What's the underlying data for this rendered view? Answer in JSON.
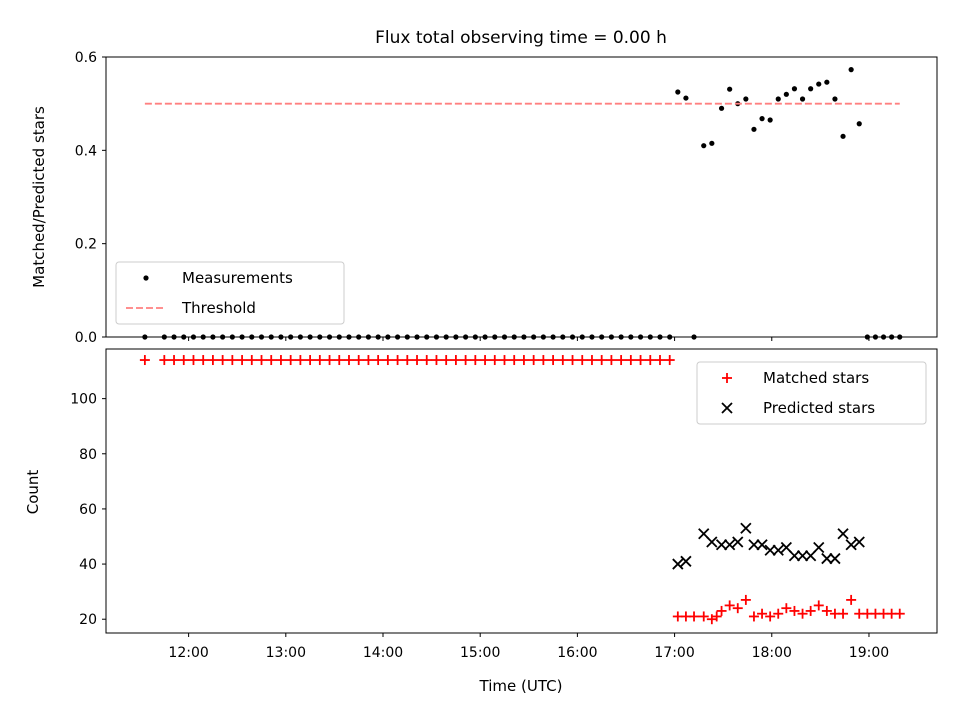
{
  "title": "Flux total observing time = 0.00 h",
  "chart_data": [
    {
      "type": "scatter",
      "ylabel": "Matched/Predicted stars",
      "ylim": [
        0,
        0.6
      ],
      "yticks": [
        "0.0",
        "0.2",
        "0.4",
        "0.6"
      ],
      "xlim": [
        "11:09",
        "19:42"
      ],
      "grid": false,
      "legend_position": "lower-left",
      "series": [
        {
          "name": "Measurements",
          "color": "#000000",
          "marker": "dot",
          "points": [
            [
              "11:33",
              0
            ],
            [
              "11:45",
              0
            ],
            [
              "11:51",
              0
            ],
            [
              "11:57",
              0
            ],
            [
              "12:03",
              0
            ],
            [
              "12:09",
              0
            ],
            [
              "12:15",
              0
            ],
            [
              "12:21",
              0
            ],
            [
              "12:27",
              0
            ],
            [
              "12:33",
              0
            ],
            [
              "12:39",
              0
            ],
            [
              "12:45",
              0
            ],
            [
              "12:51",
              0
            ],
            [
              "12:57",
              0
            ],
            [
              "13:03",
              0
            ],
            [
              "13:09",
              0
            ],
            [
              "13:15",
              0
            ],
            [
              "13:21",
              0
            ],
            [
              "13:27",
              0
            ],
            [
              "13:33",
              0
            ],
            [
              "13:39",
              0
            ],
            [
              "13:45",
              0
            ],
            [
              "13:51",
              0
            ],
            [
              "13:57",
              0
            ],
            [
              "14:03",
              0
            ],
            [
              "14:09",
              0
            ],
            [
              "14:15",
              0
            ],
            [
              "14:21",
              0
            ],
            [
              "14:27",
              0
            ],
            [
              "14:33",
              0
            ],
            [
              "14:39",
              0
            ],
            [
              "14:45",
              0
            ],
            [
              "14:51",
              0
            ],
            [
              "14:57",
              0
            ],
            [
              "15:03",
              0
            ],
            [
              "15:09",
              0
            ],
            [
              "15:15",
              0
            ],
            [
              "15:21",
              0
            ],
            [
              "15:27",
              0
            ],
            [
              "15:33",
              0
            ],
            [
              "15:39",
              0
            ],
            [
              "15:45",
              0
            ],
            [
              "15:51",
              0
            ],
            [
              "15:57",
              0
            ],
            [
              "16:03",
              0
            ],
            [
              "16:09",
              0
            ],
            [
              "16:15",
              0
            ],
            [
              "16:21",
              0
            ],
            [
              "16:27",
              0
            ],
            [
              "16:33",
              0
            ],
            [
              "16:39",
              0
            ],
            [
              "16:45",
              0
            ],
            [
              "16:51",
              0
            ],
            [
              "16:57",
              0
            ],
            [
              "17:02",
              0.525
            ],
            [
              "17:07",
              0.512
            ],
            [
              "17:12",
              0
            ],
            [
              "17:18",
              0.41
            ],
            [
              "17:23",
              0.415
            ],
            [
              "17:29",
              0.49
            ],
            [
              "17:34",
              0.531
            ],
            [
              "17:39",
              0.5
            ],
            [
              "17:44",
              0.51
            ],
            [
              "17:49",
              0.445
            ],
            [
              "17:54",
              0.468
            ],
            [
              "17:59",
              0.465
            ],
            [
              "18:04",
              0.51
            ],
            [
              "18:09",
              0.52
            ],
            [
              "18:14",
              0.532
            ],
            [
              "18:19",
              0.51
            ],
            [
              "18:24",
              0.532
            ],
            [
              "18:29",
              0.542
            ],
            [
              "18:34",
              0.546
            ],
            [
              "18:39",
              0.51
            ],
            [
              "18:44",
              0.43
            ],
            [
              "18:49",
              0.573
            ],
            [
              "18:54",
              0.457
            ],
            [
              "18:59",
              0
            ],
            [
              "19:04",
              0
            ],
            [
              "19:09",
              0
            ],
            [
              "19:14",
              0
            ],
            [
              "19:19",
              0
            ]
          ]
        },
        {
          "name": "Threshold",
          "color": "#ff8080",
          "style": "dashed",
          "points": [
            [
              "11:33",
              0.5
            ],
            [
              "19:19",
              0.5
            ]
          ]
        }
      ]
    },
    {
      "type": "scatter",
      "xlabel": "Time (UTC)",
      "ylabel": "Count",
      "ylim": [
        15,
        118
      ],
      "yticks": [
        "20",
        "40",
        "60",
        "80",
        "100"
      ],
      "xticks": [
        "12:00",
        "13:00",
        "14:00",
        "15:00",
        "16:00",
        "17:00",
        "18:00",
        "19:00"
      ],
      "xlim": [
        "11:09",
        "19:42"
      ],
      "grid": false,
      "legend_position": "top-right",
      "series": [
        {
          "name": "Matched stars",
          "color": "#ff0000",
          "marker": "plus",
          "points": [
            [
              "11:33",
              114
            ],
            [
              "11:45",
              114
            ],
            [
              "11:51",
              114
            ],
            [
              "11:57",
              114
            ],
            [
              "12:03",
              114
            ],
            [
              "12:09",
              114
            ],
            [
              "12:15",
              114
            ],
            [
              "12:21",
              114
            ],
            [
              "12:27",
              114
            ],
            [
              "12:33",
              114
            ],
            [
              "12:39",
              114
            ],
            [
              "12:45",
              114
            ],
            [
              "12:51",
              114
            ],
            [
              "12:57",
              114
            ],
            [
              "13:03",
              114
            ],
            [
              "13:09",
              114
            ],
            [
              "13:15",
              114
            ],
            [
              "13:21",
              114
            ],
            [
              "13:27",
              114
            ],
            [
              "13:33",
              114
            ],
            [
              "13:39",
              114
            ],
            [
              "13:45",
              114
            ],
            [
              "13:51",
              114
            ],
            [
              "13:57",
              114
            ],
            [
              "14:03",
              114
            ],
            [
              "14:09",
              114
            ],
            [
              "14:15",
              114
            ],
            [
              "14:21",
              114
            ],
            [
              "14:27",
              114
            ],
            [
              "14:33",
              114
            ],
            [
              "14:39",
              114
            ],
            [
              "14:45",
              114
            ],
            [
              "14:51",
              114
            ],
            [
              "14:57",
              114
            ],
            [
              "15:03",
              114
            ],
            [
              "15:09",
              114
            ],
            [
              "15:15",
              114
            ],
            [
              "15:21",
              114
            ],
            [
              "15:27",
              114
            ],
            [
              "15:33",
              114
            ],
            [
              "15:39",
              114
            ],
            [
              "15:45",
              114
            ],
            [
              "15:51",
              114
            ],
            [
              "15:57",
              114
            ],
            [
              "16:03",
              114
            ],
            [
              "16:09",
              114
            ],
            [
              "16:15",
              114
            ],
            [
              "16:21",
              114
            ],
            [
              "16:27",
              114
            ],
            [
              "16:33",
              114
            ],
            [
              "16:39",
              114
            ],
            [
              "16:45",
              114
            ],
            [
              "16:51",
              114
            ],
            [
              "16:57",
              114
            ],
            [
              "17:02",
              21
            ],
            [
              "17:07",
              21
            ],
            [
              "17:12",
              21
            ],
            [
              "17:18",
              21
            ],
            [
              "17:23",
              20
            ],
            [
              "17:26",
              21
            ],
            [
              "17:29",
              23
            ],
            [
              "17:34",
              25
            ],
            [
              "17:39",
              24
            ],
            [
              "17:44",
              27
            ],
            [
              "17:49",
              21
            ],
            [
              "17:54",
              22
            ],
            [
              "17:59",
              21
            ],
            [
              "18:04",
              22
            ],
            [
              "18:09",
              24
            ],
            [
              "18:14",
              23
            ],
            [
              "18:19",
              22
            ],
            [
              "18:24",
              23
            ],
            [
              "18:29",
              25
            ],
            [
              "18:34",
              23
            ],
            [
              "18:39",
              22
            ],
            [
              "18:44",
              22
            ],
            [
              "18:49",
              27
            ],
            [
              "18:54",
              22
            ],
            [
              "18:59",
              22
            ],
            [
              "19:04",
              22
            ],
            [
              "19:09",
              22
            ],
            [
              "19:14",
              22
            ],
            [
              "19:19",
              22
            ]
          ]
        },
        {
          "name": "Predicted stars",
          "color": "#000000",
          "marker": "x",
          "points": [
            [
              "17:02",
              40
            ],
            [
              "17:07",
              41
            ],
            [
              "17:18",
              51
            ],
            [
              "17:23",
              48
            ],
            [
              "17:29",
              47
            ],
            [
              "17:34",
              47
            ],
            [
              "17:39",
              48
            ],
            [
              "17:44",
              53
            ],
            [
              "17:49",
              47
            ],
            [
              "17:54",
              47
            ],
            [
              "17:59",
              45
            ],
            [
              "18:04",
              45
            ],
            [
              "18:09",
              46
            ],
            [
              "18:14",
              43
            ],
            [
              "18:19",
              43
            ],
            [
              "18:24",
              43
            ],
            [
              "18:29",
              46
            ],
            [
              "18:34",
              42
            ],
            [
              "18:39",
              42
            ],
            [
              "18:44",
              51
            ],
            [
              "18:49",
              47
            ],
            [
              "18:54",
              48
            ]
          ]
        }
      ]
    }
  ]
}
